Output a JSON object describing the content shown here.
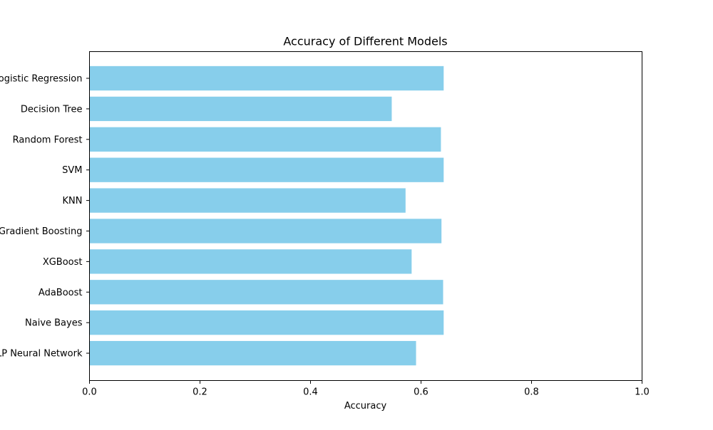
{
  "chart_data": {
    "type": "bar",
    "orientation": "horizontal",
    "title": "Accuracy of Different Models",
    "xlabel": "Accuracy",
    "ylabel": "",
    "categories": [
      "Logistic Regression",
      "Decision Tree",
      "Random Forest",
      "SVM",
      "KNN",
      "Gradient Boosting",
      "XGBoost",
      "AdaBoost",
      "Naive Bayes",
      "MLP Neural Network"
    ],
    "values": [
      0.641,
      0.547,
      0.636,
      0.641,
      0.572,
      0.637,
      0.583,
      0.64,
      0.641,
      0.591
    ],
    "xlim": [
      0.0,
      1.0
    ],
    "xticks": [
      "0.0",
      "0.2",
      "0.4",
      "0.6",
      "0.8",
      "1.0"
    ],
    "grid": false,
    "bar_color": "#87CEEB"
  }
}
